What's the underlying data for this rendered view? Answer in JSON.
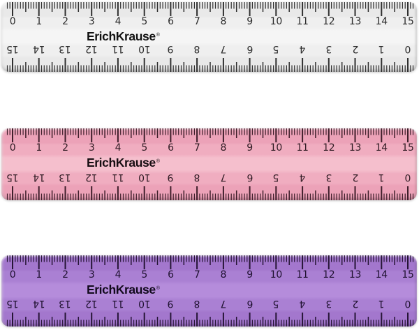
{
  "brand": {
    "name": "ErichKrause",
    "registered_mark": "®"
  },
  "scale": {
    "unit": "cm",
    "min": 0,
    "max": 15,
    "mm_per_cm": 10,
    "top_labels": [
      0,
      1,
      2,
      3,
      4,
      5,
      6,
      7,
      8,
      9,
      10,
      11,
      12,
      13,
      14,
      15
    ],
    "bottom_labels_inverted": [
      15,
      14,
      13,
      12,
      11,
      10,
      9,
      8,
      7,
      6,
      5,
      4,
      3,
      2,
      1,
      0
    ]
  },
  "rulers": [
    {
      "name": "white-transparent-ruler",
      "colors": {
        "strip": "#e9e9e9",
        "number_band": "#efefef",
        "center_band": "#f5f5f5",
        "bottom_edge": "#dcdcdc",
        "tick": "#303030",
        "numeral": "#2b2b2b",
        "logo": "#121212"
      }
    },
    {
      "name": "pink-ruler",
      "colors": {
        "strip": "#eca2b8",
        "number_band": "#f0adc0",
        "center_band": "#f5bfcd",
        "bottom_edge": "#e18fa8",
        "tick": "#3f1f2b",
        "numeral": "#2f1b23",
        "logo": "#170e12"
      }
    },
    {
      "name": "purple-ruler",
      "colors": {
        "strip": "#a377cd",
        "number_band": "#aa80d3",
        "center_band": "#b58cdb",
        "bottom_edge": "#9466c0",
        "tick": "#261536",
        "numeral": "#1f1130",
        "logo": "#120a1d"
      }
    }
  ]
}
